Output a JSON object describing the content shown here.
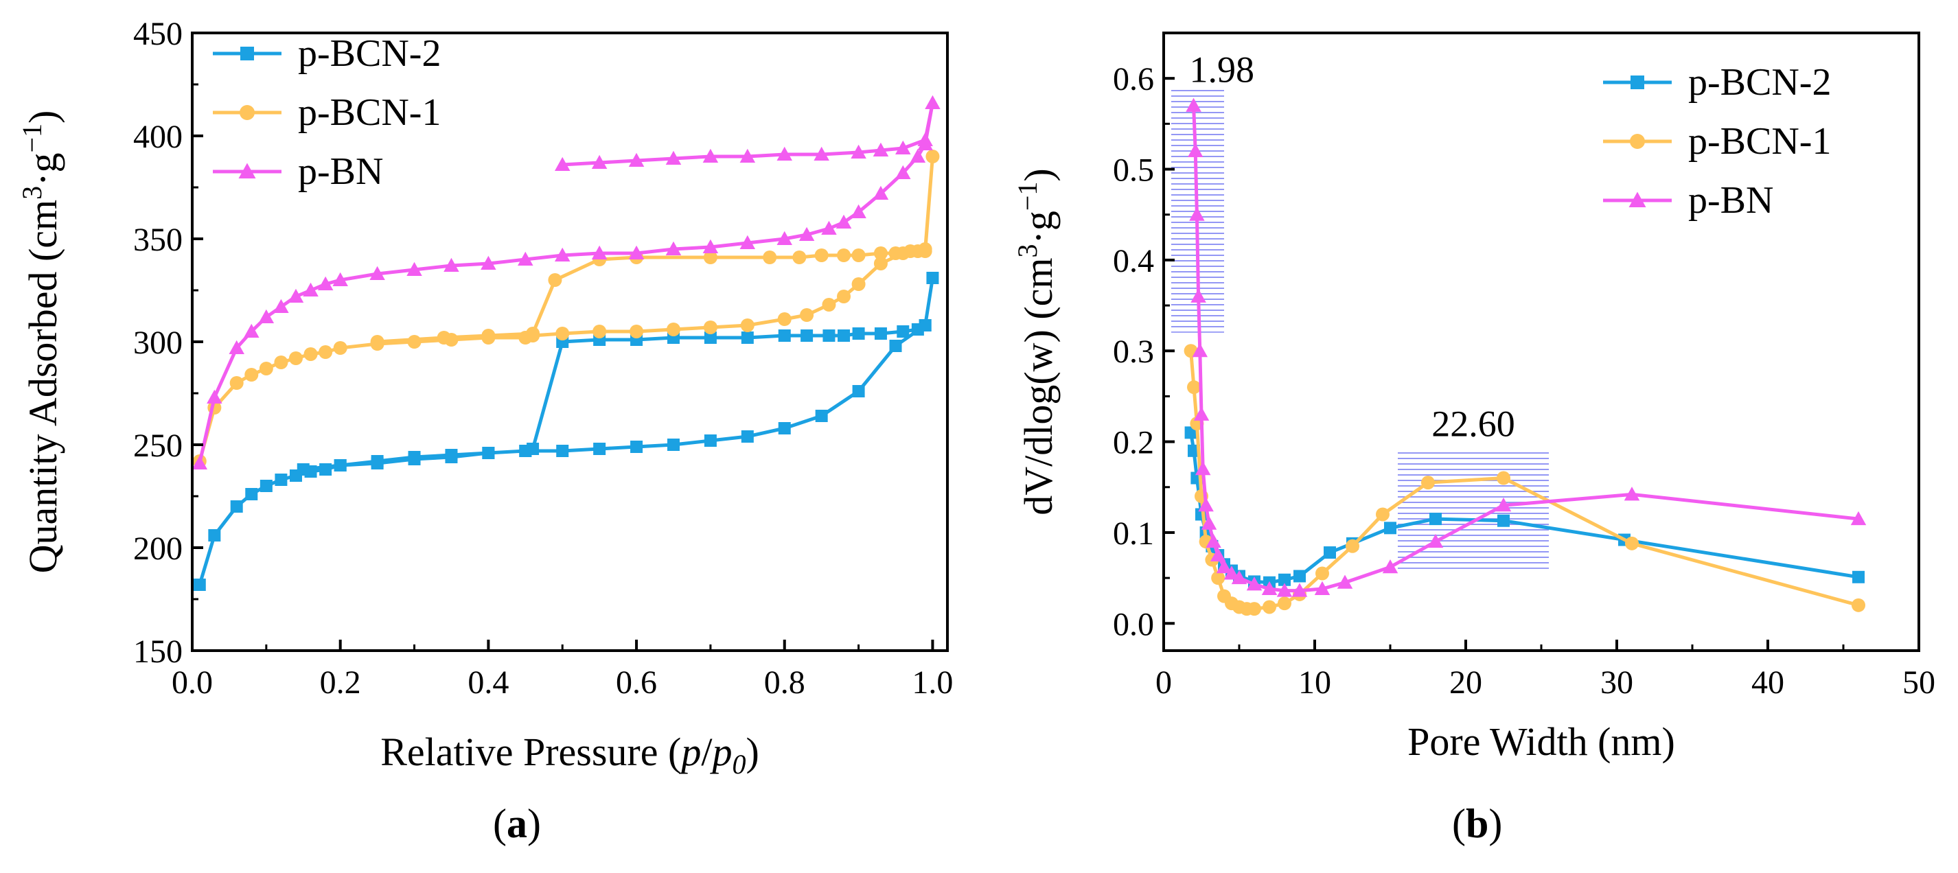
{
  "colors": {
    "p-BCN-2": "#1ba1e2",
    "p-BCN-1": "#ffc45a",
    "p-BN": "#f25cf0",
    "hatch": "#6f74f2"
  },
  "chart_data": [
    {
      "id": "a",
      "type": "line",
      "panel_label": "a",
      "xlabel_main": "Relative Pressure (",
      "xlabel_p": "p",
      "xlabel_slash": "/",
      "xlabel_p0": "p",
      "xlabel_sub": "0",
      "xlabel_close": ")",
      "ylabel_main": "Quantity Adsorbed (cm",
      "ylabel_sup1": "3",
      "ylabel_mid": "·g",
      "ylabel_sup2": "−1",
      "ylabel_close": ")",
      "xlim": [
        0.0,
        1.02
      ],
      "ylim": [
        150,
        450
      ],
      "xticks": [
        "0.0",
        "0.2",
        "0.4",
        "0.6",
        "0.8",
        "1.0"
      ],
      "xtick_values": [
        0,
        0.2,
        0.4,
        0.6,
        0.8,
        1.0
      ],
      "yticks": [
        "150",
        "200",
        "250",
        "300",
        "350",
        "400",
        "450"
      ],
      "ytick_values": [
        150,
        200,
        250,
        300,
        350,
        400,
        450
      ],
      "legend_position": "top-left",
      "series": [
        {
          "name": "p-BCN-2",
          "marker": "square",
          "x": [
            0.01,
            0.03,
            0.06,
            0.08,
            0.1,
            0.12,
            0.14,
            0.16,
            0.18,
            0.2,
            0.25,
            0.3,
            0.35,
            0.4,
            0.45,
            0.46,
            0.5,
            0.55,
            0.6,
            0.65,
            0.7,
            0.75,
            0.8,
            0.83,
            0.86,
            0.88,
            0.9,
            0.93,
            0.96,
            0.98,
            0.99,
            1.0,
            0.99,
            0.95,
            0.9,
            0.85,
            0.8,
            0.75,
            0.7,
            0.65,
            0.6,
            0.55,
            0.5,
            0.45,
            0.4,
            0.35,
            0.3,
            0.25,
            0.2,
            0.15
          ],
          "y": [
            182,
            206,
            220,
            226,
            230,
            233,
            235,
            237,
            238,
            240,
            242,
            244,
            245,
            246,
            247,
            248,
            300,
            301,
            301,
            302,
            302,
            302,
            303,
            303,
            303,
            303,
            304,
            304,
            305,
            306,
            308,
            331,
            308,
            298,
            276,
            264,
            258,
            254,
            252,
            250,
            249,
            248,
            247,
            247,
            246,
            244,
            243,
            241,
            240,
            238
          ]
        },
        {
          "name": "p-BCN-1",
          "marker": "circle",
          "x": [
            0.01,
            0.03,
            0.06,
            0.08,
            0.1,
            0.12,
            0.14,
            0.16,
            0.18,
            0.2,
            0.25,
            0.3,
            0.35,
            0.4,
            0.45,
            0.46,
            0.5,
            0.55,
            0.6,
            0.65,
            0.7,
            0.75,
            0.8,
            0.83,
            0.86,
            0.88,
            0.9,
            0.93,
            0.96,
            0.98,
            0.99,
            1.0,
            0.99,
            0.97,
            0.95,
            0.93,
            0.9,
            0.88,
            0.85,
            0.82,
            0.78,
            0.7,
            0.6,
            0.55,
            0.49,
            0.46,
            0.4,
            0.34,
            0.25
          ],
          "y": [
            242,
            268,
            280,
            284,
            287,
            290,
            292,
            294,
            295,
            297,
            299,
            300,
            301,
            302,
            302,
            303,
            304,
            305,
            305,
            306,
            307,
            308,
            311,
            313,
            318,
            322,
            328,
            338,
            343,
            344,
            344,
            390,
            345,
            344,
            343,
            343,
            342,
            342,
            342,
            341,
            341,
            341,
            341,
            340,
            330,
            304,
            303,
            302,
            300
          ]
        },
        {
          "name": "p-BN",
          "marker": "triangle",
          "x": [
            0.01,
            0.03,
            0.06,
            0.08,
            0.1,
            0.12,
            0.14,
            0.16,
            0.18,
            0.2,
            0.25,
            0.3,
            0.35,
            0.4,
            0.45,
            0.5,
            0.55,
            0.6,
            0.65,
            0.7,
            0.75,
            0.8,
            0.83,
            0.86,
            0.88,
            0.9,
            0.93,
            0.96,
            0.98,
            0.99,
            1.0,
            0.99,
            0.96,
            0.93,
            0.9,
            0.85,
            0.8,
            0.75,
            0.7,
            0.65,
            0.6,
            0.55,
            0.5
          ],
          "y": [
            241,
            273,
            297,
            305,
            312,
            317,
            322,
            325,
            328,
            330,
            333,
            335,
            337,
            338,
            340,
            342,
            343,
            343,
            345,
            346,
            348,
            350,
            352,
            355,
            358,
            363,
            372,
            382,
            390,
            396,
            416,
            398,
            394,
            393,
            392,
            391,
            391,
            390,
            390,
            389,
            388,
            387,
            386
          ]
        }
      ]
    },
    {
      "id": "b",
      "type": "line",
      "panel_label": "b",
      "xlabel": "Pore Width (nm)",
      "ylabel_main": "dV/dlog(w) (cm",
      "ylabel_sup1": "3",
      "ylabel_mid": "·g",
      "ylabel_sup2": "−1",
      "ylabel_close": ")",
      "xlim": [
        0,
        50
      ],
      "ylim": [
        -0.03,
        0.65
      ],
      "xticks": [
        "0",
        "10",
        "20",
        "30",
        "40",
        "50"
      ],
      "xtick_values": [
        0,
        10,
        20,
        30,
        40,
        50
      ],
      "yticks": [
        "0.0",
        "0.1",
        "0.2",
        "0.3",
        "0.4",
        "0.5",
        "0.6"
      ],
      "ytick_values": [
        0,
        0.1,
        0.2,
        0.3,
        0.4,
        0.5,
        0.6
      ],
      "legend_position": "top-right",
      "annotations": [
        {
          "text": "1.98",
          "x": 1.98,
          "y": 0.59,
          "hatch_x": [
            0.5,
            4.0
          ],
          "hatch_y": [
            0.32,
            0.59
          ]
        },
        {
          "text": "22.60",
          "x": 20.5,
          "y": 0.2,
          "hatch_x": [
            15.5,
            25.5
          ],
          "hatch_y": [
            0.06,
            0.19
          ]
        }
      ],
      "series": [
        {
          "name": "p-BCN-2",
          "marker": "square",
          "x": [
            1.8,
            2.0,
            2.2,
            2.5,
            2.8,
            3.2,
            3.6,
            4.0,
            4.5,
            5.0,
            6.0,
            7.0,
            8.0,
            9.0,
            11.0,
            12.5,
            15.0,
            18.0,
            22.5,
            30.5,
            46.0
          ],
          "y": [
            0.21,
            0.19,
            0.16,
            0.12,
            0.1,
            0.085,
            0.075,
            0.065,
            0.058,
            0.052,
            0.046,
            0.045,
            0.048,
            0.052,
            0.078,
            0.088,
            0.105,
            0.115,
            0.113,
            0.092,
            0.051
          ]
        },
        {
          "name": "p-BCN-1",
          "marker": "circle",
          "x": [
            1.8,
            2.0,
            2.2,
            2.5,
            2.8,
            3.2,
            3.6,
            4.0,
            4.5,
            5.0,
            5.5,
            6.0,
            7.0,
            8.0,
            9.0,
            10.5,
            12.5,
            14.5,
            17.5,
            22.5,
            31.0,
            46.0
          ],
          "y": [
            0.3,
            0.26,
            0.22,
            0.14,
            0.09,
            0.07,
            0.05,
            0.03,
            0.022,
            0.018,
            0.016,
            0.016,
            0.018,
            0.022,
            0.032,
            0.055,
            0.085,
            0.12,
            0.155,
            0.16,
            0.088,
            0.02
          ]
        },
        {
          "name": "p-BN",
          "marker": "triangle",
          "x": [
            1.98,
            2.1,
            2.2,
            2.3,
            2.4,
            2.5,
            2.6,
            2.8,
            3.0,
            3.3,
            3.6,
            4.0,
            4.5,
            5.0,
            6.0,
            7.0,
            8.0,
            9.0,
            10.5,
            12.0,
            15.0,
            18.0,
            22.5,
            31.0,
            46.0
          ],
          "y": [
            0.57,
            0.52,
            0.45,
            0.36,
            0.3,
            0.23,
            0.17,
            0.13,
            0.11,
            0.09,
            0.075,
            0.062,
            0.055,
            0.05,
            0.043,
            0.038,
            0.036,
            0.036,
            0.038,
            0.045,
            0.062,
            0.09,
            0.13,
            0.142,
            0.115
          ]
        }
      ]
    }
  ]
}
